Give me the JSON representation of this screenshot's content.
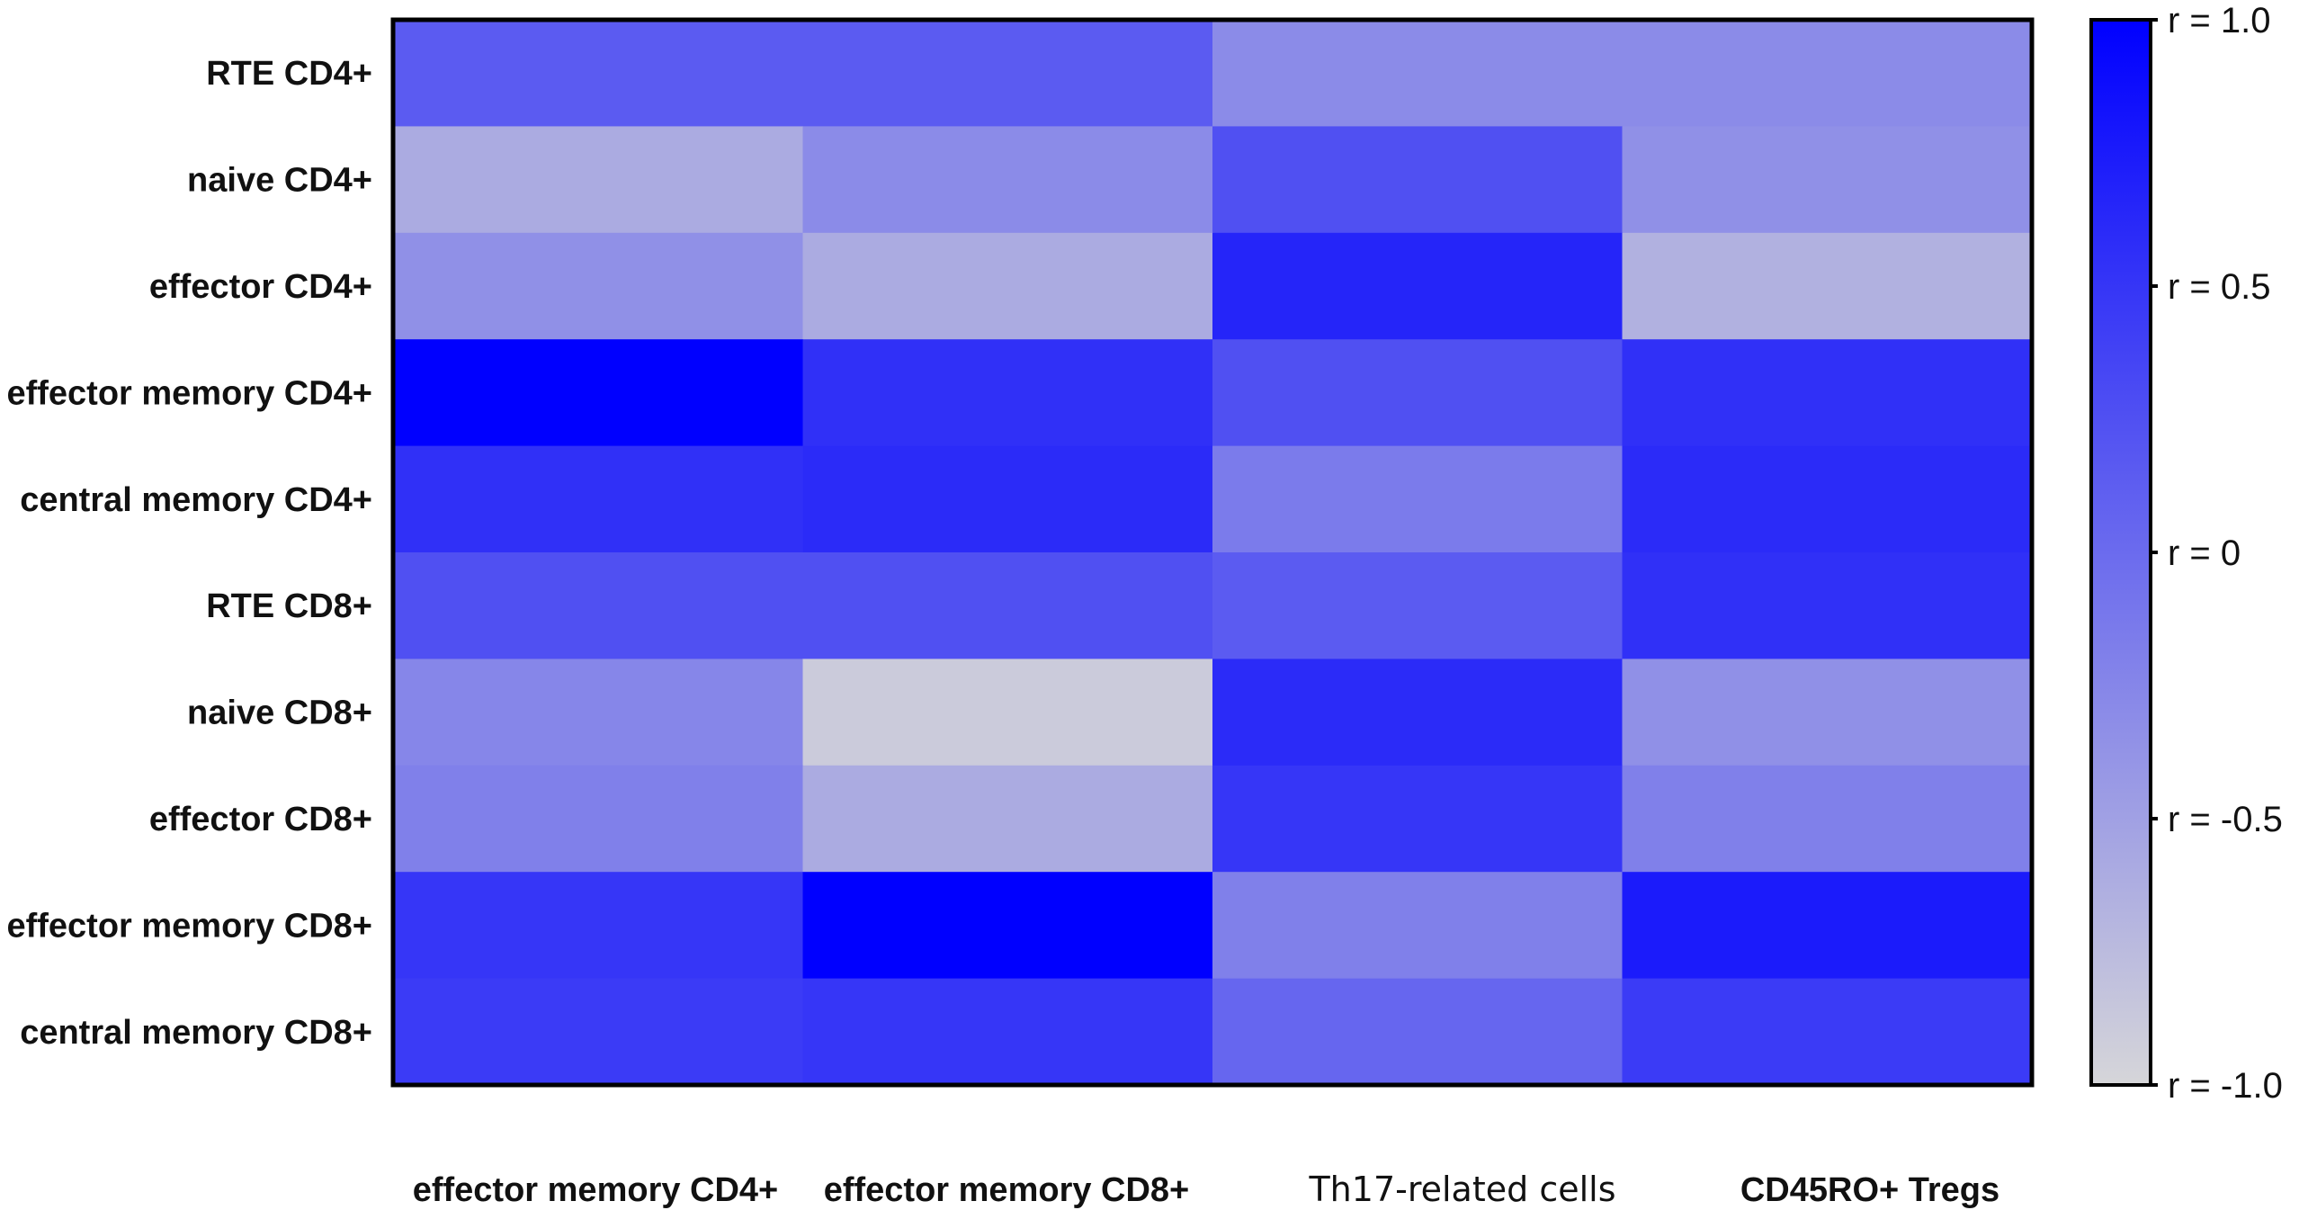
{
  "chart_data": {
    "type": "heatmap",
    "rows": [
      "RTE CD4+",
      "naive CD4+",
      "effector CD4+",
      "effector memory CD4+",
      "central memory CD4+",
      "RTE CD8+",
      "naive CD8+",
      "effector CD8+",
      "effector memory CD8+",
      "central memory CD8+"
    ],
    "columns": [
      "effector memory CD4+",
      "effector memory CD8+",
      "Th17-related cells",
      "CD45RO+ Tregs"
    ],
    "values": [
      [
        0.15,
        0.15,
        -0.3,
        -0.3
      ],
      [
        -0.6,
        -0.3,
        0.25,
        -0.35
      ],
      [
        -0.35,
        -0.6,
        0.65,
        -0.65
      ],
      [
        1.0,
        0.55,
        0.25,
        0.55
      ],
      [
        0.55,
        0.6,
        -0.15,
        0.6
      ],
      [
        0.25,
        0.25,
        0.15,
        0.55
      ],
      [
        -0.25,
        -0.9,
        0.6,
        -0.35
      ],
      [
        -0.2,
        -0.6,
        0.5,
        -0.2
      ],
      [
        0.5,
        1.0,
        -0.2,
        0.75
      ],
      [
        0.45,
        0.5,
        0.05,
        0.45
      ]
    ],
    "colorbar": {
      "ticks": [
        "r = 1.0",
        "r = 0.5",
        "r = 0",
        "r = -0.5",
        "r = -1.0"
      ],
      "min": -1.0,
      "max": 1.0,
      "low_color": "#d6d6d9",
      "mid_color": "#6b6bee",
      "high_color": "#0000ff"
    },
    "grid": false
  }
}
